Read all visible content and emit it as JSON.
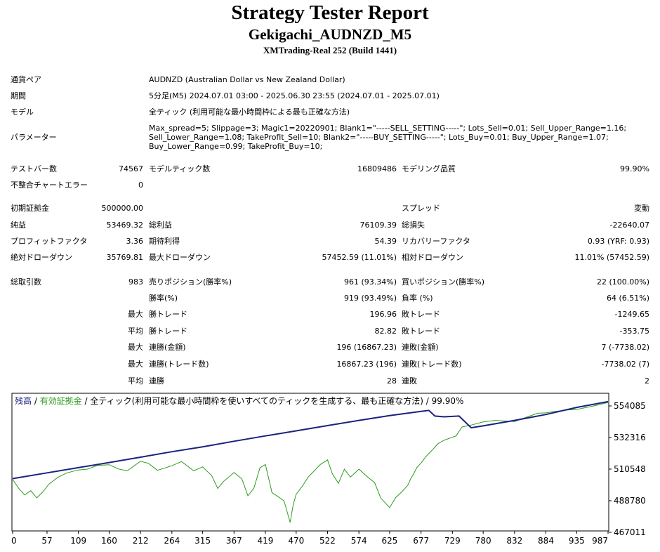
{
  "header": {
    "title": "Strategy Tester Report",
    "ea": "Gekigachi_AUDNZD_M5",
    "server": "XMTrading-Real 252 (Build 1441)"
  },
  "info": {
    "pair_label": "通貨ペア",
    "pair_value": "AUDNZD (Australian Dollar vs New Zealand Dollar)",
    "period_label": "期間",
    "period_value": "5分足(M5) 2024.07.01 03:00 - 2025.06.30 23:55 (2024.07.01 - 2025.07.01)",
    "model_label": "モデル",
    "model_value": "全ティック (利用可能な最小時間枠による最も正確な方法)",
    "params_label": "パラメーター",
    "params_value": "Max_spread=5; Slippage=3; Magic1=20220901; Blank1=\"-----SELL_SETTING-----\"; Lots_Sell=0.01; Sell_Upper_Range=1.16; Sell_Lower_Range=1.08; TakeProfit_Sell=10; Blank2=\"-----BUY_SETTING-----\"; Lots_Buy=0.01; Buy_Upper_Range=1.07; Buy_Lower_Range=0.99; TakeProfit_Buy=10;"
  },
  "test": {
    "bars_label": "テストバー数",
    "bars_value": "74567",
    "ticks_label": "モデルティック数",
    "ticks_value": "16809486",
    "quality_label": "モデリング品質",
    "quality_value": "99.90%",
    "errors_label": "不整合チャートエラー",
    "errors_value": "0"
  },
  "results": {
    "deposit_label": "初期証拠金",
    "deposit_value": "500000.00",
    "spread_label": "スプレッド",
    "spread_value": "変動",
    "net_label": "純益",
    "net_value": "53469.32",
    "gross_profit_label": "総利益",
    "gross_profit_value": "76109.39",
    "gross_loss_label": "総損失",
    "gross_loss_value": "-22640.07",
    "pf_label": "プロフィットファクタ",
    "pf_value": "3.36",
    "expected_label": "期待利得",
    "expected_value": "54.39",
    "recovery_label": "リカバリーファクタ",
    "recovery_value": "0.93 (YRF: 0.93)",
    "abs_dd_label": "絶対ドローダウン",
    "abs_dd_value": "35769.81",
    "max_dd_label": "最大ドローダウン",
    "max_dd_value": "57452.59 (11.01%)",
    "rel_dd_label": "相対ドローダウン",
    "rel_dd_value": "11.01% (57452.59)"
  },
  "trades": {
    "total_label": "総取引数",
    "total_value": "983",
    "short_label": "売りポジション(勝率%)",
    "short_value": "961 (93.34%)",
    "long_label": "買いポジション(勝率%)",
    "long_value": "22 (100.00%)",
    "win_rate_label": "勝率(%)",
    "win_rate_value": "919 (93.49%)",
    "loss_rate_label": "負率 (%)",
    "loss_rate_value": "64 (6.51%)",
    "max_label": "最大",
    "avg_label": "平均",
    "max_win_label": "勝トレード",
    "max_win_value": "196.96",
    "max_loss_label": "敗トレード",
    "max_loss_value": "-1249.65",
    "avg_win_label": "勝トレード",
    "avg_win_value": "82.82",
    "avg_loss_label": "敗トレード",
    "avg_loss_value": "-353.75",
    "cons_win_amt_label": "連勝(金額)",
    "cons_win_amt_value": "196 (16867.23)",
    "cons_loss_amt_label": "連敗(金額)",
    "cons_loss_amt_value": "7 (-7738.02)",
    "cons_win_cnt_label": "連勝(トレード数)",
    "cons_win_cnt_value": "16867.23 (196)",
    "cons_loss_cnt_label": "連敗(トレード数)",
    "cons_loss_cnt_value": "-7738.02 (7)",
    "avg_cons_win_label": "連勝",
    "avg_cons_win_value": "28",
    "avg_cons_loss_label": "連敗",
    "avg_cons_loss_value": "2"
  },
  "chart_data": {
    "type": "line",
    "legend_balance": "残高",
    "legend_sep": " / ",
    "legend_equity": "有効証拠金",
    "legend_rest": " / 全ティック(利用可能な最小時間枠を使いすべてのティックを生成する、最も正確な方法) / 99.90%",
    "xticks": [
      "0",
      "57",
      "109",
      "160",
      "212",
      "264",
      "315",
      "367",
      "419",
      "470",
      "522",
      "574",
      "625",
      "677",
      "729",
      "780",
      "832",
      "884",
      "935",
      "987"
    ],
    "yticks": [
      "554085",
      "532316",
      "510548",
      "488780",
      "467011"
    ],
    "xlim": [
      0,
      987
    ],
    "ylim": [
      467011,
      554085
    ],
    "colors": {
      "balance": "#1a237e",
      "equity": "#2e9b1f",
      "grid": "#000000"
    },
    "series": [
      {
        "name": "残高",
        "x": [
          0,
          57,
          109,
          160,
          212,
          264,
          315,
          367,
          419,
          470,
          522,
          574,
          625,
          677,
          690,
          700,
          715,
          740,
          760,
          780,
          832,
          884,
          935,
          987
        ],
        "y": [
          500000,
          503700,
          507000,
          510300,
          513700,
          517200,
          520300,
          523900,
          527300,
          530500,
          533900,
          537200,
          540300,
          543000,
          543600,
          540000,
          539500,
          540000,
          532500,
          533700,
          537200,
          541000,
          545500,
          549200
        ]
      },
      {
        "name": "有効証拠金",
        "x": [
          0,
          10,
          20,
          30,
          40,
          50,
          60,
          75,
          90,
          109,
          125,
          140,
          160,
          175,
          190,
          212,
          225,
          240,
          264,
          280,
          300,
          315,
          330,
          340,
          350,
          367,
          380,
          390,
          400,
          410,
          419,
          430,
          440,
          450,
          460,
          465,
          470,
          480,
          490,
          500,
          510,
          522,
          530,
          540,
          550,
          560,
          574,
          590,
          600,
          610,
          620,
          625,
          635,
          645,
          655,
          660,
          665,
          670,
          677,
          685,
          695,
          705,
          715,
          725,
          735,
          745,
          760,
          780,
          800,
          832,
          850,
          870,
          884,
          900,
          920,
          935,
          950,
          970,
          987
        ],
        "y": [
          499500,
          493800,
          489600,
          492300,
          487700,
          491500,
          496400,
          500800,
          503700,
          505500,
          506100,
          508400,
          508900,
          506200,
          505000,
          511100,
          509800,
          505300,
          508200,
          510900,
          505000,
          507500,
          501900,
          493700,
          498300,
          503900,
          499800,
          489000,
          494000,
          507000,
          509000,
          491000,
          488500,
          485700,
          472000,
          483000,
          490000,
          495000,
          501000,
          505000,
          509000,
          512000,
          503000,
          497000,
          506000,
          501000,
          506000,
          500500,
          497500,
          487700,
          483500,
          481500,
          487900,
          491500,
          495800,
          500000,
          503200,
          507000,
          510000,
          514000,
          518000,
          522300,
          524500,
          525900,
          527300,
          533000,
          534200,
          536200,
          537200,
          536500,
          539000,
          541800,
          542000,
          543000,
          543900,
          544200,
          545400,
          547000,
          548700
        ]
      }
    ]
  }
}
